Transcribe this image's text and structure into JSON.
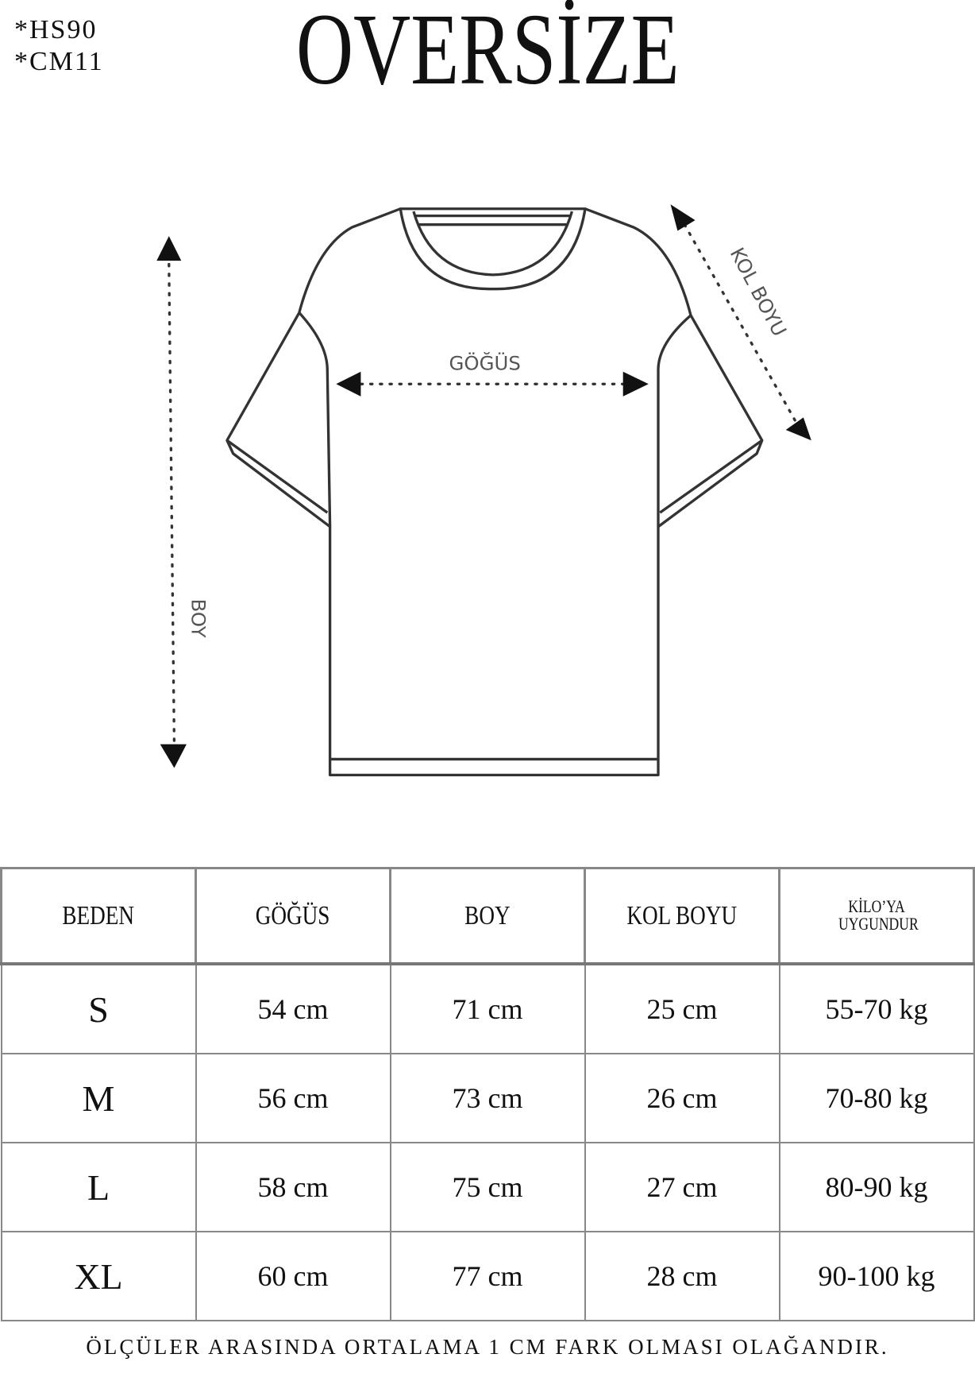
{
  "codes": [
    "*HS90",
    "*CM11"
  ],
  "title": "OVERSİZE",
  "diagram": {
    "chest_label": "GÖĞÜS",
    "length_label": "BOY",
    "sleeve_label": "KOL BOYU"
  },
  "table": {
    "headers": [
      "BEDEN",
      "GÖĞÜS",
      "BOY",
      "KOL BOYU",
      "KİLO’YA UYGUNDUR"
    ],
    "rows": [
      [
        "S",
        "54 cm",
        "71 cm",
        "25  cm",
        "55-70 kg"
      ],
      [
        "M",
        "56 cm",
        "73 cm",
        "26 cm",
        "70-80 kg"
      ],
      [
        "L",
        "58 cm",
        "75 cm",
        "27 cm",
        "80-90 kg"
      ],
      [
        "XL",
        "60 cm",
        "77 cm",
        "28 cm",
        "90-100 kg"
      ]
    ]
  },
  "footer": "ÖLÇÜLER ARASINDA ORTALAMA 1 CM FARK OLMASI OLAĞANDIR."
}
